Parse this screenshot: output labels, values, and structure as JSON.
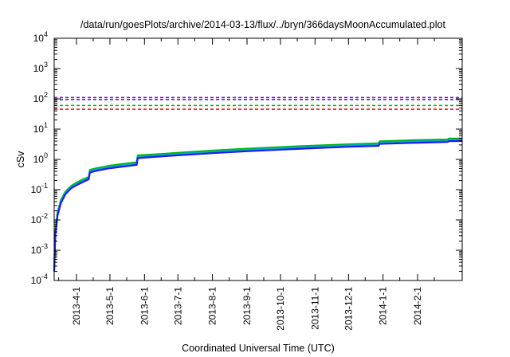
{
  "chart_data": {
    "type": "line",
    "title": "/data/run/goesPlots/archive/2014-03-13/flux/../bryn/366daysMoonAccumulated.plot",
    "xlabel": "Coordinated Universal Time (UTC)",
    "ylabel": "cSv",
    "x_range": [
      "2013-03-12",
      "2014-03-13"
    ],
    "y_scale": "log",
    "ylim": [
      0.0001,
      10000
    ],
    "grid": false,
    "x_ticks": [
      "2013-4-1",
      "2013-5-1",
      "2013-6-1",
      "2013-7-1",
      "2013-8-1",
      "2013-9-1",
      "2013-10-1",
      "2013-11-1",
      "2013-12-1",
      "2014-1-1",
      "2014-2-1"
    ],
    "y_ticks": [
      {
        "base": "10",
        "exp": "-4"
      },
      {
        "base": "10",
        "exp": "-3"
      },
      {
        "base": "10",
        "exp": "-2"
      },
      {
        "base": "10",
        "exp": "-1"
      },
      {
        "base": "10",
        "exp": "0"
      },
      {
        "base": "10",
        "exp": "1"
      },
      {
        "base": "10",
        "exp": "2"
      },
      {
        "base": "10",
        "exp": "3"
      },
      {
        "base": "10",
        "exp": "4"
      }
    ],
    "reference_lines": [
      {
        "value": 110,
        "color": "#9400d3",
        "dash": true
      },
      {
        "value": 95,
        "color": "#1a1aff",
        "dash": true
      },
      {
        "value": 60,
        "color": "#00b000",
        "dash": true
      },
      {
        "value": 45,
        "color": "#ff0000",
        "dash": true
      }
    ],
    "series": [
      {
        "color": "#00b000",
        "points": [
          [
            "2013-03-12",
            0.00025
          ],
          [
            "2013-03-13",
            0.004
          ],
          [
            "2013-03-15",
            0.018
          ],
          [
            "2013-03-18",
            0.045
          ],
          [
            "2013-03-22",
            0.085
          ],
          [
            "2013-03-27",
            0.13
          ],
          [
            "2013-04-01",
            0.17
          ],
          [
            "2013-04-07",
            0.22
          ],
          [
            "2013-04-12",
            0.26
          ],
          [
            "2013-04-13",
            0.45
          ],
          [
            "2013-04-20",
            0.52
          ],
          [
            "2013-05-01",
            0.62
          ],
          [
            "2013-05-15",
            0.72
          ],
          [
            "2013-05-25",
            0.8
          ],
          [
            "2013-05-26",
            1.35
          ],
          [
            "2013-06-15",
            1.5
          ],
          [
            "2013-07-01",
            1.65
          ],
          [
            "2013-08-01",
            1.95
          ],
          [
            "2013-09-01",
            2.25
          ],
          [
            "2013-10-01",
            2.55
          ],
          [
            "2013-11-01",
            2.85
          ],
          [
            "2013-12-01",
            3.15
          ],
          [
            "2013-12-28",
            3.4
          ],
          [
            "2013-12-29",
            3.95
          ],
          [
            "2014-02-01",
            4.3
          ],
          [
            "2014-02-28",
            4.55
          ],
          [
            "2014-03-01",
            4.85
          ],
          [
            "2014-03-13",
            4.9
          ]
        ]
      },
      {
        "color": "#00b0b0",
        "points": [
          [
            "2013-03-12",
            0.00022
          ],
          [
            "2013-03-13",
            0.0035
          ],
          [
            "2013-03-15",
            0.016
          ],
          [
            "2013-03-18",
            0.04
          ],
          [
            "2013-03-22",
            0.078
          ],
          [
            "2013-03-27",
            0.12
          ],
          [
            "2013-04-01",
            0.155
          ],
          [
            "2013-04-07",
            0.2
          ],
          [
            "2013-04-12",
            0.24
          ],
          [
            "2013-04-13",
            0.41
          ],
          [
            "2013-04-20",
            0.48
          ],
          [
            "2013-05-01",
            0.57
          ],
          [
            "2013-05-15",
            0.66
          ],
          [
            "2013-05-25",
            0.73
          ],
          [
            "2013-05-26",
            1.23
          ],
          [
            "2013-06-15",
            1.38
          ],
          [
            "2013-07-01",
            1.52
          ],
          [
            "2013-08-01",
            1.8
          ],
          [
            "2013-09-01",
            2.07
          ],
          [
            "2013-10-01",
            2.35
          ],
          [
            "2013-11-01",
            2.62
          ],
          [
            "2013-12-01",
            2.9
          ],
          [
            "2013-12-28",
            3.12
          ],
          [
            "2013-12-29",
            3.62
          ],
          [
            "2014-02-01",
            3.95
          ],
          [
            "2014-02-28",
            4.2
          ],
          [
            "2014-03-01",
            4.45
          ],
          [
            "2014-03-13",
            4.5
          ]
        ]
      },
      {
        "color": "#1a1aff",
        "points": [
          [
            "2013-03-12",
            0.0002
          ],
          [
            "2013-03-13",
            0.003
          ],
          [
            "2013-03-15",
            0.014
          ],
          [
            "2013-03-18",
            0.036
          ],
          [
            "2013-03-22",
            0.07
          ],
          [
            "2013-03-27",
            0.11
          ],
          [
            "2013-04-01",
            0.14
          ],
          [
            "2013-04-07",
            0.18
          ],
          [
            "2013-04-12",
            0.22
          ],
          [
            "2013-04-13",
            0.37
          ],
          [
            "2013-04-20",
            0.43
          ],
          [
            "2013-05-01",
            0.51
          ],
          [
            "2013-05-15",
            0.59
          ],
          [
            "2013-05-25",
            0.66
          ],
          [
            "2013-05-26",
            1.1
          ],
          [
            "2013-06-15",
            1.24
          ],
          [
            "2013-07-01",
            1.36
          ],
          [
            "2013-08-01",
            1.6
          ],
          [
            "2013-09-01",
            1.85
          ],
          [
            "2013-10-01",
            2.1
          ],
          [
            "2013-11-01",
            2.35
          ],
          [
            "2013-12-01",
            2.6
          ],
          [
            "2013-12-28",
            2.8
          ],
          [
            "2013-12-29",
            3.25
          ],
          [
            "2014-02-01",
            3.55
          ],
          [
            "2014-02-28",
            3.78
          ],
          [
            "2014-03-01",
            4.0
          ],
          [
            "2014-03-13",
            4.05
          ]
        ]
      }
    ]
  }
}
